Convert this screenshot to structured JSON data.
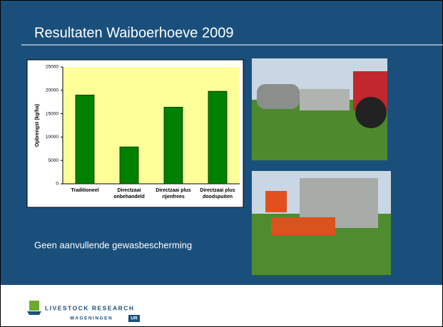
{
  "slide": {
    "title": "Resultaten Waiboerhoeve 2009",
    "caption": "Geen aanvullende gewasbescherming",
    "logo": {
      "name": "LIVESTOCK RESEARCH",
      "org": "WAGENINGEN",
      "org_mark": "UR"
    }
  },
  "chart_data": {
    "type": "bar",
    "y_label": "Opbrengst (kg/ha)",
    "categories": [
      "Traditioneel",
      "Directzaai\nonbehandeld",
      "Directzaai plus\nrijenfrees",
      "Directzaai plus\ndoodspuiten"
    ],
    "values": [
      19000,
      7900,
      16400,
      19800
    ],
    "color": "#008000",
    "ylim": [
      0,
      25000
    ],
    "yticks": [
      0,
      5000,
      10000,
      15000,
      20000,
      25000
    ],
    "grid": false
  }
}
